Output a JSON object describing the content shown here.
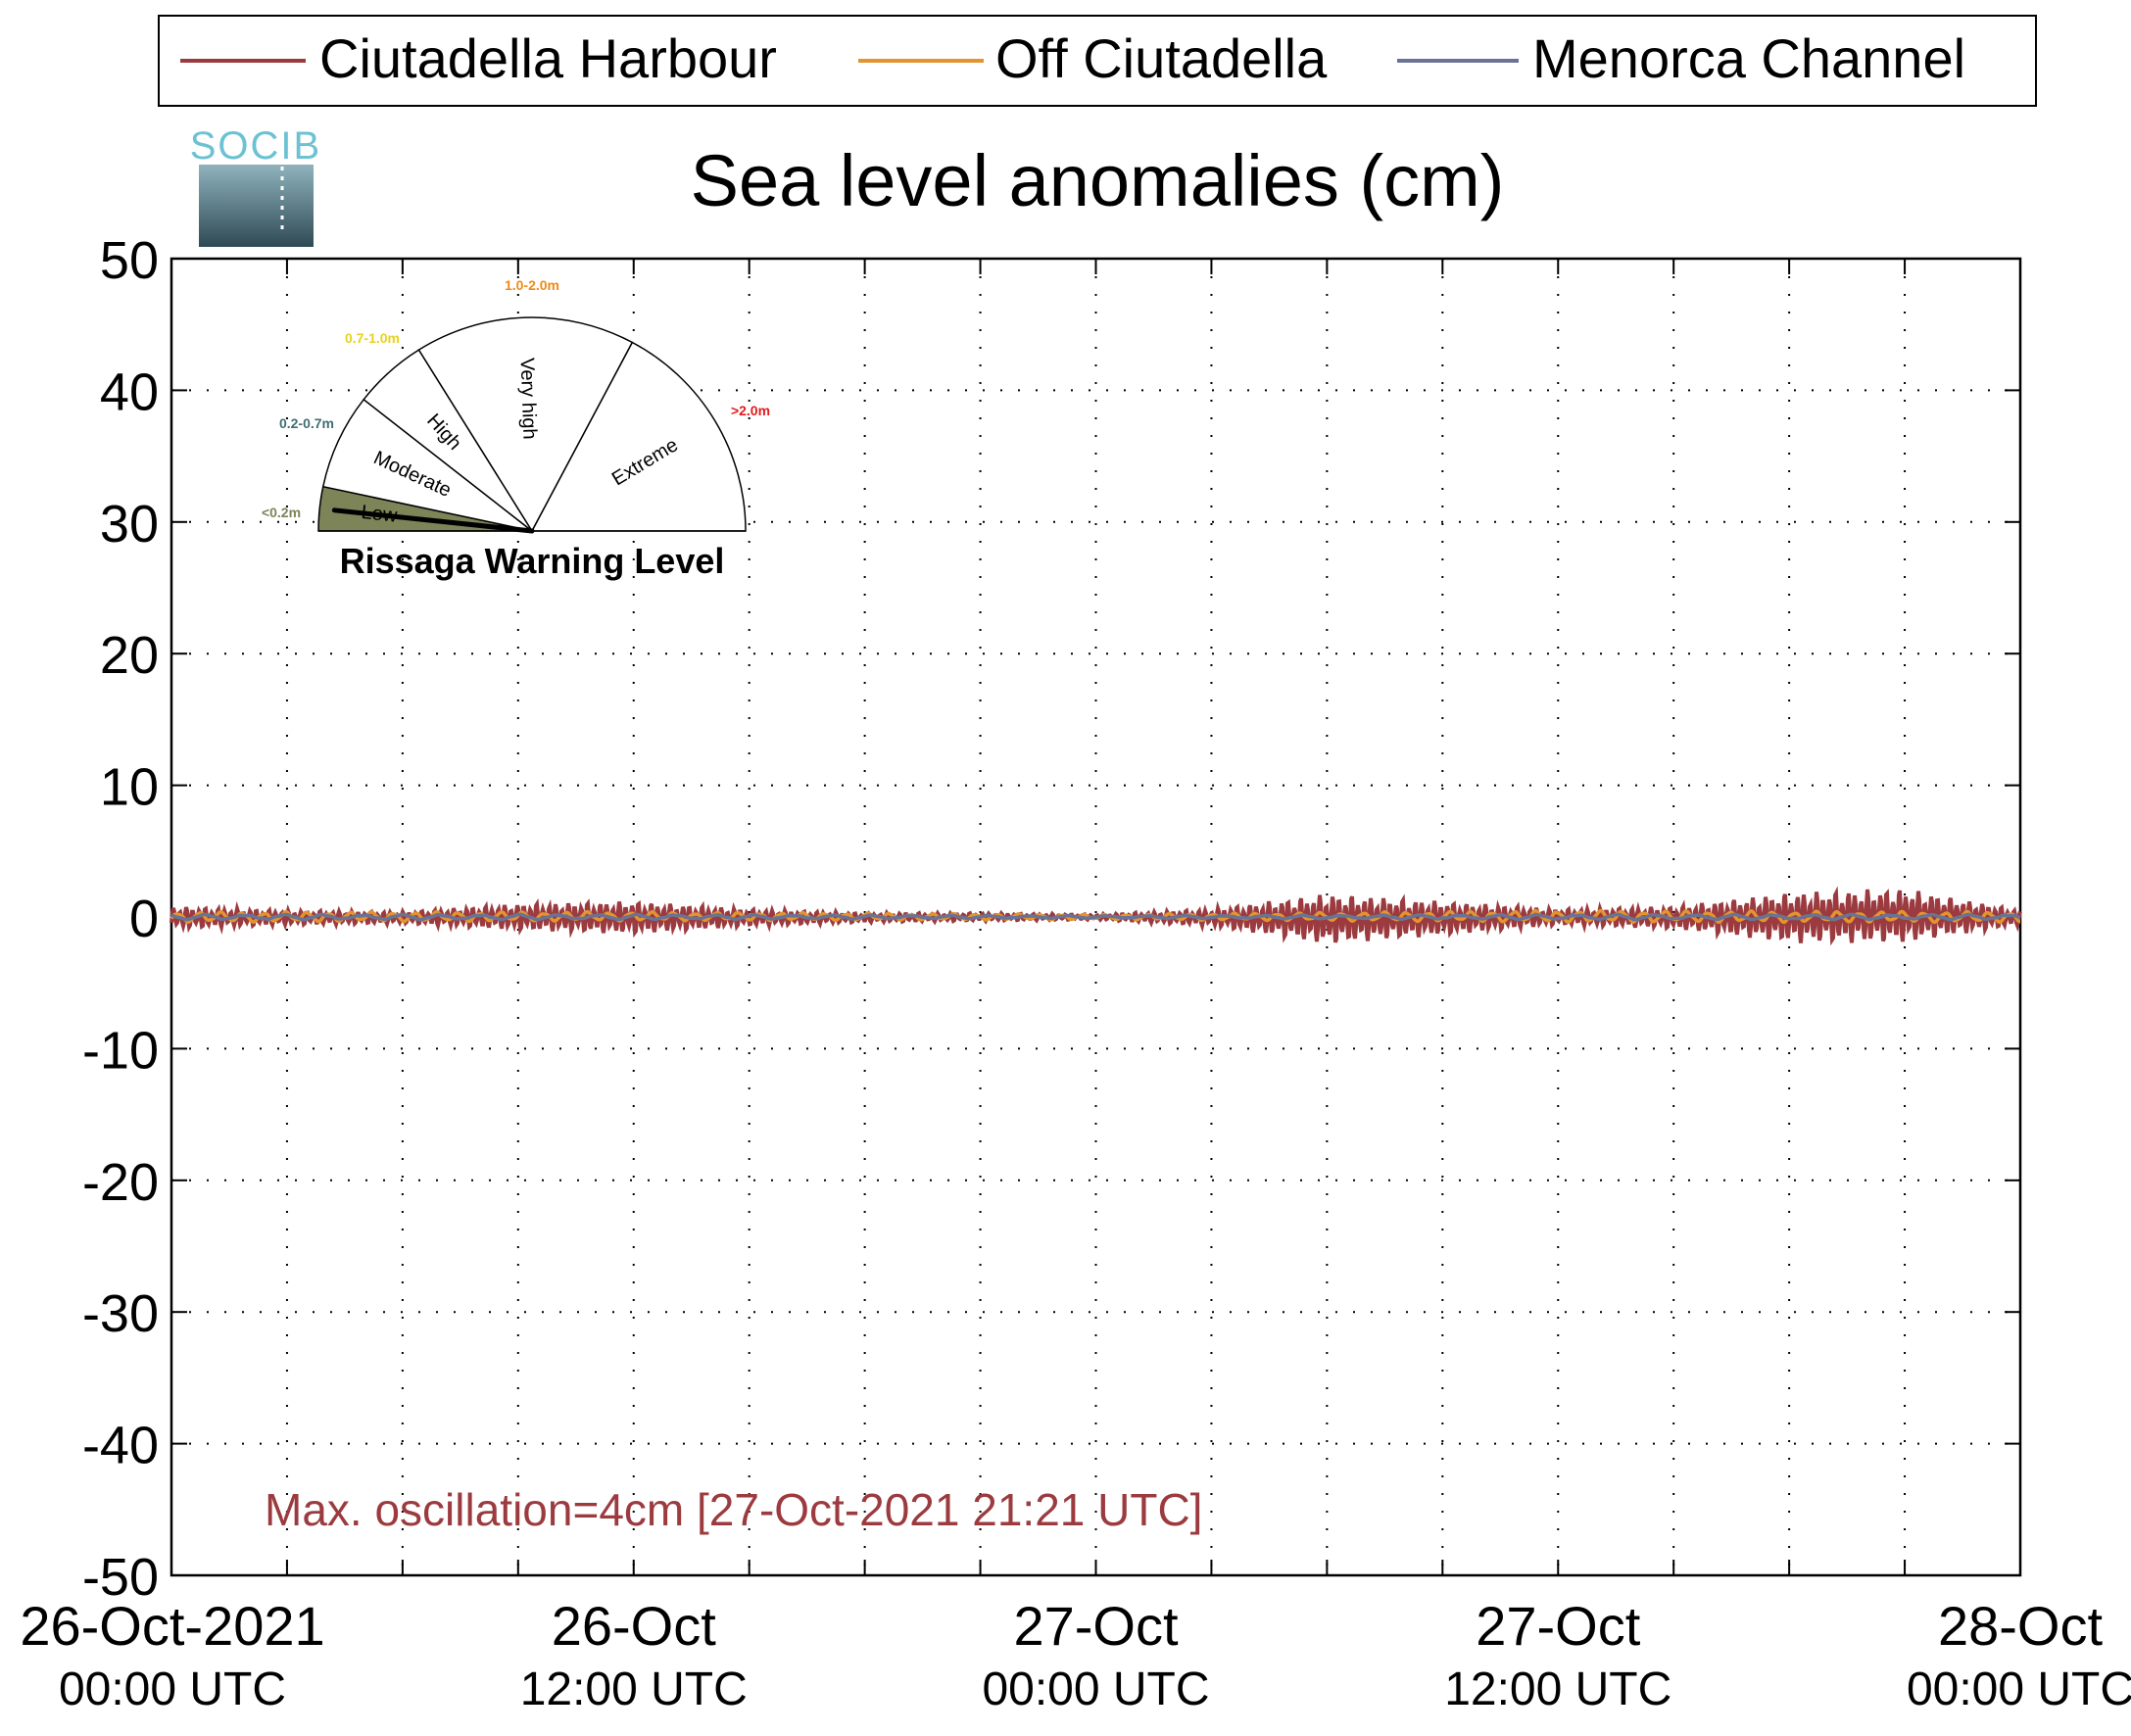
{
  "logo": {
    "text": "SOCIB"
  },
  "legend": [
    {
      "label": "Ciutadella Harbour",
      "color": "#9c3b3f"
    },
    {
      "label": "Off Ciutadella",
      "color": "#e3942f"
    },
    {
      "label": "Menorca Channel",
      "color": "#6a7394"
    }
  ],
  "gauge": {
    "title": "Rissaga Warning Level",
    "sectors": [
      {
        "name": "Low",
        "range": "<0.2m",
        "range_color": "#7c8458",
        "fill": "#7c8458",
        "active": true
      },
      {
        "name": "Moderate",
        "range": "0.2-0.7m",
        "range_color": "#3f6e72",
        "fill": "#ffffff",
        "active": false
      },
      {
        "name": "High",
        "range": "0.7-1.0m",
        "range_color": "#e8d21c",
        "fill": "#ffffff",
        "active": false
      },
      {
        "name": "Very high",
        "range": "1.0-2.0m",
        "range_color": "#f08a18",
        "fill": "#ffffff",
        "active": false
      },
      {
        "name": "Extreme",
        "range": ">2.0m",
        "range_color": "#e31b1b",
        "fill": "#ffffff",
        "active": false
      }
    ],
    "needle_level": "Low"
  },
  "annotation": {
    "text": "Max. oscillation=4cm [27-Oct-2021 21:21 UTC]",
    "color": "#9c3b3f"
  },
  "chart_data": {
    "type": "line",
    "title": "Sea level anomalies (cm)",
    "xlabel": "",
    "ylabel": "",
    "ylim": [
      -50,
      50
    ],
    "yticks": [
      50,
      40,
      30,
      20,
      10,
      0,
      -10,
      -20,
      -30,
      -40,
      -50
    ],
    "xlim": [
      "2021-10-26 00:00",
      "2021-10-28 00:00"
    ],
    "xtick_labels": [
      {
        "time": "2021-10-26 00:00",
        "line1": "26-Oct-2021",
        "line2": "00:00 UTC"
      },
      {
        "time": "2021-10-26 12:00",
        "line1": "26-Oct",
        "line2": "12:00 UTC"
      },
      {
        "time": "2021-10-27 00:00",
        "line1": "27-Oct",
        "line2": "00:00 UTC"
      },
      {
        "time": "2021-10-27 12:00",
        "line1": "27-Oct",
        "line2": "12:00 UTC"
      },
      {
        "time": "2021-10-28 00:00",
        "line1": "28-Oct",
        "line2": "00:00 UTC"
      }
    ],
    "grid": true,
    "legend_position": "top",
    "series": [
      {
        "name": "Ciutadella Harbour",
        "color": "#9c3b3f",
        "envelope_cm": {
          "x": [
            "2021-10-26 00:00",
            "2021-10-26 03:00",
            "2021-10-26 06:00",
            "2021-10-26 09:00",
            "2021-10-26 12:00",
            "2021-10-26 15:00",
            "2021-10-26 18:00",
            "2021-10-26 21:00",
            "2021-10-27 00:00",
            "2021-10-27 03:00",
            "2021-10-27 06:00",
            "2021-10-27 09:00",
            "2021-10-27 12:00",
            "2021-10-27 15:00",
            "2021-10-27 18:00",
            "2021-10-27 21:00",
            "2021-10-28 00:00"
          ],
          "upper": [
            0.8,
            0.5,
            0.4,
            1.0,
            1.2,
            0.6,
            0.3,
            0.3,
            0.2,
            0.6,
            1.8,
            1.2,
            0.6,
            0.8,
            1.9,
            2.2,
            0.5
          ],
          "lower": [
            -0.9,
            -0.6,
            -0.5,
            -1.0,
            -1.3,
            -0.7,
            -0.4,
            -0.3,
            -0.2,
            -0.7,
            -2.1,
            -1.4,
            -0.6,
            -0.9,
            -2.0,
            -2.0,
            -0.6
          ]
        }
      },
      {
        "name": "Off Ciutadella",
        "color": "#e3942f",
        "envelope_cm": {
          "x": [
            "2021-10-26 00:00",
            "2021-10-26 12:00",
            "2021-10-27 00:00",
            "2021-10-27 12:00",
            "2021-10-28 00:00"
          ],
          "upper": [
            0.4,
            0.4,
            0.2,
            0.5,
            0.4
          ],
          "lower": [
            -0.4,
            -0.3,
            -0.2,
            -0.4,
            -0.4
          ]
        }
      },
      {
        "name": "Menorca Channel",
        "color": "#6a7394",
        "envelope_cm": {
          "x": [
            "2021-10-26 00:00",
            "2021-10-26 12:00",
            "2021-10-27 00:00",
            "2021-10-27 12:00",
            "2021-10-28 00:00"
          ],
          "upper": [
            0.2,
            0.2,
            0.1,
            0.2,
            0.2
          ],
          "lower": [
            -0.2,
            -0.2,
            -0.1,
            -0.2,
            -0.2
          ]
        }
      }
    ]
  }
}
